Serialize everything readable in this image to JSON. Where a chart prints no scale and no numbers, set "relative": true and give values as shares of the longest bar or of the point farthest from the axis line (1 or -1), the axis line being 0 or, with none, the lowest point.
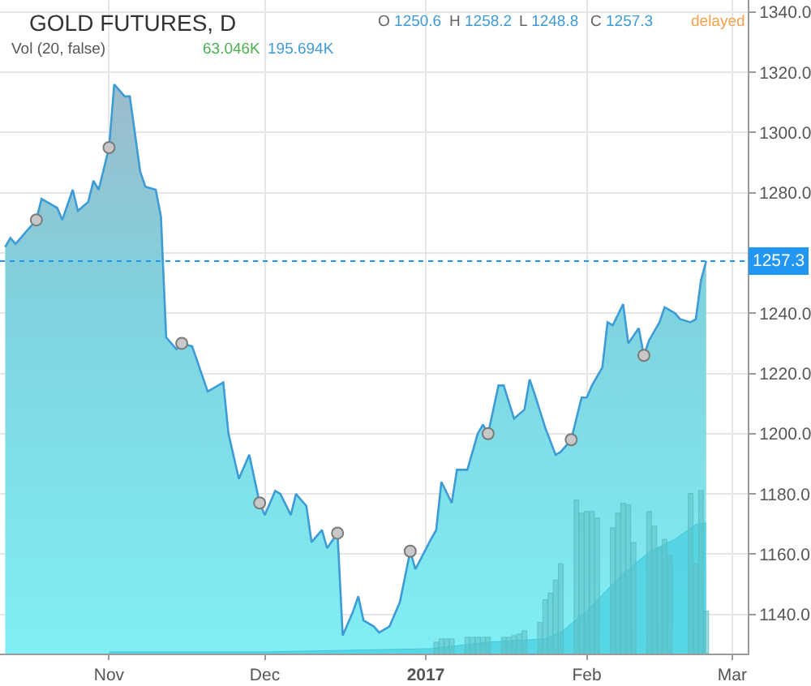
{
  "chart_data": [
    {
      "type": "area",
      "title": "GOLD FUTURES, D",
      "annotations": [
        "O 1250.6",
        "H 1258.2",
        "L 1248.8",
        "C 1257.3",
        "delayed"
      ],
      "x": [
        "2016-10-12",
        "2016-10-13",
        "2016-10-14",
        "2016-10-18",
        "2016-10-19",
        "2016-10-21",
        "2016-10-22",
        "2016-10-23",
        "2016-10-25",
        "2016-10-26",
        "2016-10-28",
        "2016-10-29",
        "2016-10-30",
        "2016-11-01",
        "2016-11-02",
        "2016-11-04",
        "2016-11-05",
        "2016-11-07",
        "2016-11-08",
        "2016-11-10",
        "2016-11-11",
        "2016-11-12",
        "2016-11-14",
        "2016-11-15",
        "2016-11-17",
        "2016-11-20",
        "2016-11-23",
        "2016-11-24",
        "2016-11-26",
        "2016-11-28",
        "2016-11-30",
        "2016-12-01",
        "2016-12-03",
        "2016-12-04",
        "2016-12-06",
        "2016-12-07",
        "2016-12-09",
        "2016-12-10",
        "2016-12-12",
        "2016-12-13",
        "2016-12-15",
        "2016-12-16",
        "2016-12-18",
        "2016-12-19",
        "2016-12-20",
        "2016-12-22",
        "2016-12-23",
        "2016-12-25",
        "2016-12-27",
        "2016-12-29",
        "2016-12-30",
        "2017-01-02",
        "2017-01-03",
        "2017-01-04",
        "2017-01-06",
        "2017-01-07",
        "2017-01-09",
        "2017-01-11",
        "2017-01-12",
        "2017-01-13",
        "2017-01-15",
        "2017-01-16",
        "2017-01-18",
        "2017-01-20",
        "2017-01-21",
        "2017-01-22",
        "2017-01-24",
        "2017-01-26",
        "2017-01-27",
        "2017-01-29",
        "2017-01-31",
        "2017-02-01",
        "2017-02-02",
        "2017-02-04",
        "2017-02-05",
        "2017-02-06",
        "2017-02-08",
        "2017-02-09",
        "2017-02-11",
        "2017-02-12",
        "2017-02-13",
        "2017-02-15",
        "2017-02-16",
        "2017-02-18",
        "2017-02-19",
        "2017-02-21",
        "2017-02-22",
        "2017-02-23",
        "2017-02-24"
      ],
      "series": [
        {
          "color": "#3d9bd6",
          "values": [
            1262,
            1265,
            1263,
            1271,
            1278,
            1276,
            1275,
            1271,
            1281,
            1274,
            1277,
            1284,
            1281,
            1295,
            1316,
            1312,
            1312,
            1287,
            1282,
            1281,
            1272,
            1232,
            1228,
            1230,
            1229,
            1214,
            1217,
            1200,
            1185,
            1193,
            1177,
            1173,
            1181,
            1180,
            1173,
            1180,
            1176,
            1164,
            1168,
            1162,
            1167,
            1133,
            1141,
            1146,
            1138,
            1136,
            1134,
            1136,
            1144,
            1161,
            1155,
            1165,
            1168,
            1184,
            1177,
            1188,
            1188,
            1200,
            1203,
            1200,
            1216,
            1216,
            1205,
            1208,
            1218,
            1213,
            1202,
            1193,
            1194,
            1198,
            1212,
            1212,
            1216,
            1222,
            1237,
            1236,
            1243,
            1230,
            1235,
            1226,
            1231,
            1237,
            1242,
            1240,
            1238,
            1237,
            1238,
            1251,
            1257.3
          ]
        },
        {
          "type": "scatter",
          "color": "#c8c8c8",
          "marker": "circle",
          "x": [
            "2016-10-18",
            "2016-11-01",
            "2016-11-15",
            "2016-11-30",
            "2016-12-15",
            "2016-12-29",
            "2017-01-13",
            "2017-01-29",
            "2017-02-12"
          ],
          "values": [
            1271,
            1295,
            1230,
            1177,
            1167,
            1161,
            1200,
            1198,
            1226
          ]
        }
      ],
      "xlim": [
        "2016-10-11",
        "2017-03-04"
      ],
      "xticks": [
        {
          "value": "2016-11-01",
          "label": "Nov"
        },
        {
          "value": "2016-12-01",
          "label": "Dec"
        },
        {
          "value": "2017-01-01",
          "label": "2017"
        },
        {
          "value": "2017-02-01",
          "label": "Feb"
        },
        {
          "value": "2017-03-01",
          "label": "Mar"
        }
      ],
      "ylim": [
        1127,
        1344
      ],
      "yticks": [
        {
          "value": 1140,
          "label": "1140.0"
        },
        {
          "value": 1160,
          "label": "1160.0"
        },
        {
          "value": 1180,
          "label": "1180.0"
        },
        {
          "value": 1200,
          "label": "1200.0"
        },
        {
          "value": 1220,
          "label": "1220.0"
        },
        {
          "value": 1240,
          "label": "1240.0"
        },
        {
          "value": 1260,
          "label": null
        },
        {
          "value": 1280,
          "label": "1280.0"
        },
        {
          "value": 1300,
          "label": "1300.0"
        },
        {
          "value": 1320,
          "label": "1320.0"
        },
        {
          "value": 1340,
          "label": "1340.0"
        }
      ],
      "grid": true,
      "ref_lines": [
        {
          "axis": "y",
          "value": 1257.3,
          "label": "1257.3",
          "color": "#2196f3",
          "line_style": "dotted"
        }
      ]
    },
    {
      "type": "bar",
      "title": "Vol (20, false)",
      "annotations": [
        "63.046K",
        "195.694K"
      ],
      "relative": true,
      "xlim": [
        "2016-10-11",
        "2017-03-04"
      ],
      "series": [
        {
          "color": "#5bbfc4",
          "x": [
            "2017-01-03",
            "2017-01-04",
            "2017-01-05",
            "2017-01-06",
            "2017-01-09",
            "2017-01-10",
            "2017-01-11",
            "2017-01-12",
            "2017-01-13",
            "2017-01-16",
            "2017-01-17",
            "2017-01-18",
            "2017-01-19",
            "2017-01-20",
            "2017-01-23",
            "2017-01-24",
            "2017-01-25",
            "2017-01-26",
            "2017-01-27",
            "2017-01-30",
            "2017-01-31",
            "2017-02-01",
            "2017-02-02",
            "2017-02-03",
            "2017-02-06",
            "2017-02-07",
            "2017-02-08",
            "2017-02-09",
            "2017-02-10",
            "2017-02-13",
            "2017-02-14",
            "2017-02-15",
            "2017-02-16",
            "2017-02-17",
            "2017-02-21",
            "2017-02-22",
            "2017-02-23",
            "2017-02-24"
          ],
          "values": [
            0.07,
            0.09,
            0.09,
            0.09,
            0.1,
            0.1,
            0.1,
            0.1,
            0.1,
            0.1,
            0.1,
            0.11,
            0.12,
            0.14,
            0.19,
            0.33,
            0.37,
            0.45,
            0.55,
            0.94,
            0.86,
            0.87,
            0.87,
            0.83,
            0.77,
            0.86,
            0.92,
            0.91,
            0.68,
            0.87,
            0.78,
            0.65,
            0.7,
            0.6,
            0.98,
            0.55,
            1.0,
            0.26
          ]
        },
        {
          "type": "area",
          "color": "#3cc8dc",
          "x": [
            "2016-11-01",
            "2016-12-01",
            "2017-01-02",
            "2017-01-13",
            "2017-01-24",
            "2017-01-27",
            "2017-02-01",
            "2017-02-04",
            "2017-02-08",
            "2017-02-13",
            "2017-02-18",
            "2017-02-22",
            "2017-02-24"
          ],
          "values": [
            0.01,
            0.01,
            0.03,
            0.07,
            0.09,
            0.13,
            0.26,
            0.36,
            0.49,
            0.62,
            0.7,
            0.79,
            0.8
          ]
        }
      ]
    }
  ]
}
